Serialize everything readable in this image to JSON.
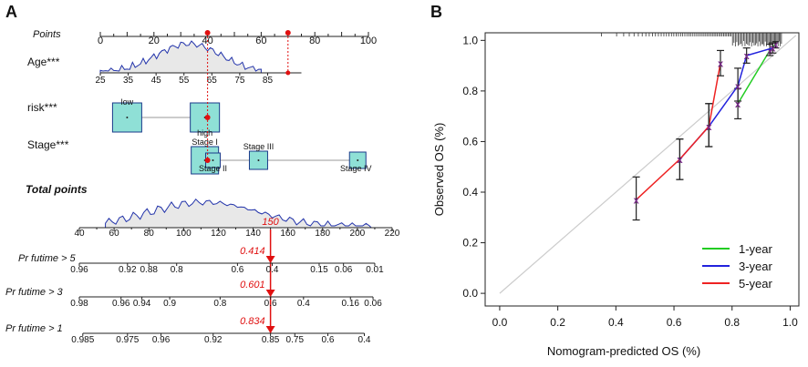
{
  "panels": {
    "a": "A",
    "b": "B"
  },
  "chart_data": [
    {
      "type": "nomogram",
      "panel_label": "A",
      "rows": {
        "points": {
          "label": "Points",
          "range": [
            0,
            100
          ],
          "ticks": [
            0,
            20,
            40,
            60,
            80,
            100
          ],
          "minor_step": 5
        },
        "age": {
          "label": "Age***",
          "ticks": [
            25,
            35,
            45,
            55,
            65,
            75,
            85
          ],
          "tick_points": [
            0,
            10.4,
            20.8,
            31.2,
            41.6,
            52,
            62.4
          ],
          "marked_values_points": [
            40,
            70
          ]
        },
        "risk": {
          "label": "risk***",
          "categories": [
            {
              "name": "low",
              "points": 10
            },
            {
              "name": "high",
              "points": 39
            }
          ]
        },
        "stage": {
          "label": "Stage***",
          "categories": [
            {
              "name": "Stage I",
              "points": 39
            },
            {
              "name": "Stage II",
              "points": 42
            },
            {
              "name": "Stage III",
              "points": 59
            },
            {
              "name": "Stage IV",
              "points": 96
            }
          ]
        },
        "total_points": {
          "label": "Total points",
          "range": [
            40,
            220
          ],
          "ticks": [
            40,
            60,
            80,
            100,
            120,
            140,
            160,
            180,
            200,
            220
          ],
          "highlighted_value": "150",
          "highlighted_numeric": 150
        },
        "survival": [
          {
            "label": "Pr  futime > 5",
            "ticks": [
              {
                "v": "0.96",
                "tp": 40
              },
              {
                "v": "0.92",
                "tp": 67.7
              },
              {
                "v": "0.88",
                "tp": 80
              },
              {
                "v": "0.8",
                "tp": 96
              },
              {
                "v": "0.6",
                "tp": 131
              },
              {
                "v": "0.4",
                "tp": 151
              },
              {
                "v": "0.15",
                "tp": 178
              },
              {
                "v": "0.06",
                "tp": 192
              },
              {
                "v": "0.01",
                "tp": 210
              }
            ],
            "predicted": "0.414"
          },
          {
            "label": "Pr  futime > 3",
            "ticks": [
              {
                "v": "0.98",
                "tp": 40
              },
              {
                "v": "0.96",
                "tp": 64
              },
              {
                "v": "0.94",
                "tp": 76
              },
              {
                "v": "0.9",
                "tp": 92
              },
              {
                "v": "0.8",
                "tp": 121
              },
              {
                "v": "0.6",
                "tp": 150
              },
              {
                "v": "0.4",
                "tp": 169
              },
              {
                "v": "0.16",
                "tp": 196
              },
              {
                "v": "0.06",
                "tp": 209
              }
            ],
            "predicted": "0.601"
          },
          {
            "label": "Pr  futime > 1",
            "ticks": [
              {
                "v": "0.985",
                "tp": 42
              },
              {
                "v": "0.975",
                "tp": 67.7
              },
              {
                "v": "0.96",
                "tp": 87
              },
              {
                "v": "0.92",
                "tp": 117
              },
              {
                "v": "0.85",
                "tp": 150
              },
              {
                "v": "0.75",
                "tp": 164
              },
              {
                "v": "0.6",
                "tp": 183
              },
              {
                "v": "0.4",
                "tp": 204
              }
            ],
            "predicted": "0.834"
          }
        ]
      }
    },
    {
      "type": "line",
      "panel_label": "B",
      "title": "",
      "xlabel": "Nomogram-predicted OS (%)",
      "ylabel": "Observed OS (%)",
      "xlim": [
        -0.05,
        1.03
      ],
      "ylim": [
        -0.05,
        1.03
      ],
      "xticks": [
        "0.0",
        "0.2",
        "0.4",
        "0.6",
        "0.8",
        "1.0"
      ],
      "yticks": [
        "0.0",
        "0.2",
        "0.4",
        "0.6",
        "0.8",
        "1.0"
      ],
      "reference_line": "diagonal",
      "legend": {
        "position": "bottom-right",
        "entries": [
          "1-year",
          "3-year",
          "5-year"
        ]
      },
      "series": [
        {
          "name": "1-year",
          "color": "#22cc22",
          "points": [
            {
              "x": 0.82,
              "y": 0.75,
              "lo": 0.69,
              "hi": 0.81
            },
            {
              "x": 0.93,
              "y": 0.96,
              "lo": 0.94,
              "hi": 0.985
            },
            {
              "x": 0.95,
              "y": 0.985,
              "lo": 0.97,
              "hi": 0.995
            }
          ]
        },
        {
          "name": "3-year",
          "color": "#2222dd",
          "points": [
            {
              "x": 0.62,
              "y": 0.53,
              "lo": 0.45,
              "hi": 0.61
            },
            {
              "x": 0.72,
              "y": 0.66,
              "lo": 0.58,
              "hi": 0.75
            },
            {
              "x": 0.82,
              "y": 0.82,
              "lo": 0.76,
              "hi": 0.89
            },
            {
              "x": 0.85,
              "y": 0.94,
              "lo": 0.91,
              "hi": 0.97
            },
            {
              "x": 0.94,
              "y": 0.97,
              "lo": 0.95,
              "hi": 0.99
            }
          ]
        },
        {
          "name": "5-year",
          "color": "#ee2222",
          "points": [
            {
              "x": 0.47,
              "y": 0.37,
              "lo": 0.29,
              "hi": 0.46
            },
            {
              "x": 0.62,
              "y": 0.53,
              "lo": 0.45,
              "hi": 0.61
            },
            {
              "x": 0.72,
              "y": 0.66,
              "lo": 0.58,
              "hi": 0.75
            },
            {
              "x": 0.76,
              "y": 0.91,
              "lo": 0.86,
              "hi": 0.96
            }
          ]
        }
      ],
      "rug_top": true
    }
  ]
}
